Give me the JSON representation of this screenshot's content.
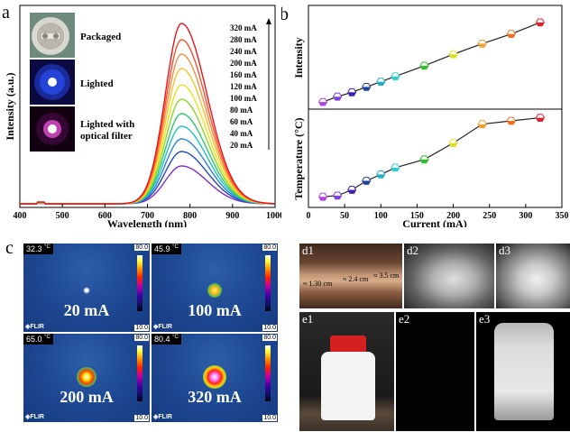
{
  "panel_labels": {
    "a": "a",
    "b": "b",
    "c": "c"
  },
  "panel_a": {
    "xlabel": "Wavelength (nm)",
    "ylabel": "Intensity (a.u.)",
    "x_ticks": [
      "400",
      "500",
      "600",
      "700",
      "800",
      "900",
      "1000"
    ],
    "insets": [
      {
        "label": "Packaged"
      },
      {
        "label": "Lighted"
      },
      {
        "label_line1": "Lighted with",
        "label_line2": "optical filter"
      }
    ],
    "currents": [
      "320 mA",
      "280 mA",
      "240 mA",
      "200 mA",
      "160 mA",
      "120 mA",
      "100 mA",
      "80 mA",
      "60 mA",
      "40 mA",
      "20 mA"
    ]
  },
  "panel_b": {
    "ylabel_top": "Intensity",
    "ylabel_bottom": "Temperature (°C)",
    "xlabel": "Current (mA)",
    "x_ticks": [
      "0",
      "50",
      "100",
      "150",
      "200",
      "250",
      "300",
      "350"
    ]
  },
  "panel_c": {
    "tiles": [
      {
        "temp": "32.3",
        "label": "20 mA"
      },
      {
        "temp": "45.9",
        "label": "100 mA"
      },
      {
        "temp": "65.0",
        "label": "200 mA"
      },
      {
        "temp": "80.4",
        "label": "320 mA"
      }
    ],
    "unit": "°C",
    "scale_max": "80.0",
    "scale_min": "10.0",
    "brand": "FLIR"
  },
  "panel_d": {
    "labels": [
      "d1",
      "d2",
      "d3"
    ],
    "measures": [
      "≈ 1.30 cm",
      "≈ 2.4 cm",
      "≈ 3.5 cm"
    ]
  },
  "panel_e": {
    "labels": [
      "e1",
      "e2",
      "e3"
    ]
  },
  "chart_data": [
    {
      "type": "line",
      "xlabel": "Wavelength (nm)",
      "ylabel": "Intensity (a.u.)",
      "xlim": [
        400,
        1000
      ],
      "peak_nm": 780,
      "series": [
        {
          "name": "320 mA",
          "color": "#e8141e",
          "peak": 1.0
        },
        {
          "name": "280 mA",
          "color": "#f4522c",
          "peak": 0.91
        },
        {
          "name": "240 mA",
          "color": "#f98c46",
          "peak": 0.83
        },
        {
          "name": "200 mA",
          "color": "#fbc02c",
          "peak": 0.75
        },
        {
          "name": "160 mA",
          "color": "#e4e51a",
          "peak": 0.66
        },
        {
          "name": "120 mA",
          "color": "#8ed62a",
          "peak": 0.58
        },
        {
          "name": "100 mA",
          "color": "#2ec86a",
          "peak": 0.5
        },
        {
          "name": "80 mA",
          "color": "#1cc2c6",
          "peak": 0.43
        },
        {
          "name": "60 mA",
          "color": "#2a82e2",
          "peak": 0.36
        },
        {
          "name": "40 mA",
          "color": "#2646bc",
          "peak": 0.29
        },
        {
          "name": "20 mA",
          "color": "#7c2cd0",
          "peak": 0.21
        }
      ]
    },
    {
      "type": "line",
      "xlabel": "Current (mA)",
      "ylabel": "Intensity",
      "xlim": [
        0,
        350
      ],
      "x": [
        20,
        40,
        60,
        80,
        100,
        120,
        160,
        200,
        240,
        280,
        320
      ],
      "values": [
        0.05,
        0.11,
        0.16,
        0.22,
        0.28,
        0.34,
        0.46,
        0.59,
        0.71,
        0.82,
        0.95
      ]
    },
    {
      "type": "line",
      "xlabel": "Current (mA)",
      "ylabel": "Temperature (°C)",
      "xlim": [
        0,
        350
      ],
      "x": [
        20,
        40,
        60,
        80,
        100,
        120,
        160,
        200,
        240,
        280,
        320
      ],
      "values": [
        32.3,
        33.0,
        36.5,
        42.0,
        45.9,
        50.0,
        55.0,
        65.0,
        76.5,
        78.5,
        80.4
      ]
    }
  ],
  "marker_colors": [
    "#b040e8",
    "#8040e0",
    "#4020b0",
    "#2040a0",
    "#20b0c0",
    "#30d0d0",
    "#30c030",
    "#e0e020",
    "#f0a030",
    "#f07020",
    "#e02030"
  ]
}
